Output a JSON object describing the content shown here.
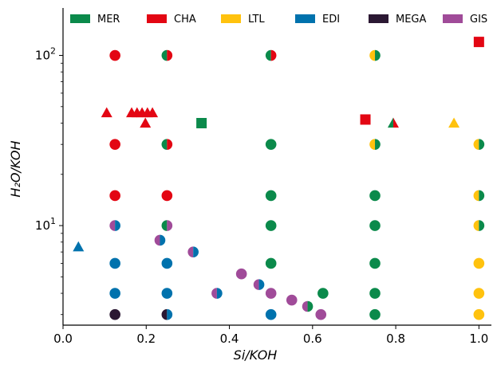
{
  "chart_data": {
    "type": "scatter",
    "title": "",
    "xlabel": "Si/KOH",
    "ylabel": "H₂O/KOH",
    "xlim": [
      0,
      1.03
    ],
    "ylim": [
      2.6,
      190
    ],
    "yscale": "log",
    "x_ticks": [
      0.0,
      0.2,
      0.4,
      0.6,
      0.8,
      1.0
    ],
    "x_tick_labels": [
      "0.0",
      "0.2",
      "0.4",
      "0.6",
      "0.8",
      "1.0"
    ],
    "y_ticks": [
      10,
      100
    ],
    "y_tick_base": "10",
    "y_tick_exponents": [
      "1",
      "2"
    ],
    "grid": false,
    "legend_position": "top",
    "colors": {
      "MER": "#0b8a4b",
      "CHA": "#e30613",
      "LTL": "#ffc20e",
      "EDI": "#0072ad",
      "MEGA": "#2b1833",
      "GIS": "#a04b99"
    },
    "legend": [
      {
        "name": "MER"
      },
      {
        "name": "CHA"
      },
      {
        "name": "LTL"
      },
      {
        "name": "EDI"
      },
      {
        "name": "MEGA"
      },
      {
        "name": "GIS"
      }
    ],
    "points": [
      {
        "x": 0.125,
        "y": 100,
        "marker": "circle",
        "phases": [
          "CHA"
        ]
      },
      {
        "x": 0.25,
        "y": 100,
        "marker": "circle",
        "phases": [
          "MER",
          "CHA"
        ]
      },
      {
        "x": 0.5,
        "y": 100,
        "marker": "circle",
        "phases": [
          "MER",
          "CHA"
        ]
      },
      {
        "x": 0.75,
        "y": 100,
        "marker": "circle",
        "phases": [
          "LTL",
          "MER"
        ]
      },
      {
        "x": 1.0,
        "y": 120,
        "marker": "square",
        "phases": [
          "CHA"
        ]
      },
      {
        "x": 0.105,
        "y": 46,
        "marker": "triangle",
        "phases": [
          "CHA"
        ]
      },
      {
        "x": 0.165,
        "y": 46,
        "marker": "triangle",
        "phases": [
          "CHA"
        ]
      },
      {
        "x": 0.178,
        "y": 46,
        "marker": "triangle",
        "phases": [
          "CHA"
        ]
      },
      {
        "x": 0.19,
        "y": 46,
        "marker": "triangle",
        "phases": [
          "CHA"
        ]
      },
      {
        "x": 0.203,
        "y": 46,
        "marker": "triangle",
        "phases": [
          "CHA"
        ]
      },
      {
        "x": 0.215,
        "y": 46,
        "marker": "triangle",
        "phases": [
          "CHA"
        ]
      },
      {
        "x": 0.198,
        "y": 40,
        "marker": "triangle",
        "phases": [
          "CHA"
        ]
      },
      {
        "x": 0.333,
        "y": 40,
        "marker": "square",
        "phases": [
          "MER"
        ]
      },
      {
        "x": 0.727,
        "y": 42,
        "marker": "square",
        "phases": [
          "CHA"
        ]
      },
      {
        "x": 0.794,
        "y": 40,
        "marker": "triangle",
        "phases": [
          "MER",
          "CHA"
        ]
      },
      {
        "x": 0.94,
        "y": 40,
        "marker": "triangle",
        "phases": [
          "LTL"
        ]
      },
      {
        "x": 0.125,
        "y": 30,
        "marker": "circle",
        "phases": [
          "CHA"
        ]
      },
      {
        "x": 0.25,
        "y": 30,
        "marker": "circle",
        "phases": [
          "MER",
          "CHA"
        ]
      },
      {
        "x": 0.5,
        "y": 30,
        "marker": "circle",
        "phases": [
          "MER"
        ]
      },
      {
        "x": 0.75,
        "y": 30,
        "marker": "circle",
        "phases": [
          "LTL",
          "MER"
        ]
      },
      {
        "x": 1.0,
        "y": 30,
        "marker": "circle",
        "phases": [
          "LTL",
          "MER"
        ]
      },
      {
        "x": 0.125,
        "y": 15,
        "marker": "circle",
        "phases": [
          "CHA"
        ]
      },
      {
        "x": 0.25,
        "y": 15,
        "marker": "circle",
        "phases": [
          "CHA"
        ]
      },
      {
        "x": 0.5,
        "y": 15,
        "marker": "circle",
        "phases": [
          "MER"
        ]
      },
      {
        "x": 0.75,
        "y": 15,
        "marker": "circle",
        "phases": [
          "MER"
        ]
      },
      {
        "x": 1.0,
        "y": 15,
        "marker": "circle",
        "phases": [
          "LTL",
          "MER"
        ]
      },
      {
        "x": 0.125,
        "y": 10,
        "marker": "circle",
        "phases": [
          "GIS",
          "EDI"
        ]
      },
      {
        "x": 0.25,
        "y": 10,
        "marker": "circle",
        "phases": [
          "MER",
          "GIS"
        ]
      },
      {
        "x": 0.5,
        "y": 10,
        "marker": "circle",
        "phases": [
          "MER"
        ]
      },
      {
        "x": 0.75,
        "y": 10,
        "marker": "circle",
        "phases": [
          "MER"
        ]
      },
      {
        "x": 1.0,
        "y": 10,
        "marker": "circle",
        "phases": [
          "LTL",
          "MER"
        ]
      },
      {
        "x": 0.037,
        "y": 7.5,
        "marker": "triangle",
        "phases": [
          "EDI"
        ]
      },
      {
        "x": 0.233,
        "y": 8.2,
        "marker": "circle",
        "phases": [
          "GIS",
          "EDI"
        ]
      },
      {
        "x": 0.313,
        "y": 7,
        "marker": "circle",
        "phases": [
          "GIS",
          "EDI"
        ]
      },
      {
        "x": 0.125,
        "y": 6,
        "marker": "circle",
        "phases": [
          "EDI"
        ]
      },
      {
        "x": 0.25,
        "y": 6,
        "marker": "circle",
        "phases": [
          "EDI"
        ]
      },
      {
        "x": 0.5,
        "y": 6,
        "marker": "circle",
        "phases": [
          "MER"
        ]
      },
      {
        "x": 0.75,
        "y": 6,
        "marker": "circle",
        "phases": [
          "MER"
        ]
      },
      {
        "x": 1.0,
        "y": 6,
        "marker": "circle",
        "phases": [
          "LTL"
        ]
      },
      {
        "x": 0.429,
        "y": 5.2,
        "marker": "circle",
        "phases": [
          "GIS"
        ]
      },
      {
        "x": 0.471,
        "y": 4.5,
        "marker": "circle",
        "phases": [
          "GIS",
          "EDI"
        ]
      },
      {
        "x": 0.125,
        "y": 4,
        "marker": "circle",
        "phases": [
          "EDI"
        ]
      },
      {
        "x": 0.25,
        "y": 4,
        "marker": "circle",
        "phases": [
          "EDI"
        ]
      },
      {
        "x": 0.37,
        "y": 4,
        "marker": "circle",
        "phases": [
          "GIS",
          "EDI"
        ]
      },
      {
        "x": 0.5,
        "y": 4,
        "marker": "circle",
        "phases": [
          "GIS"
        ]
      },
      {
        "x": 0.625,
        "y": 4,
        "marker": "circle",
        "phases": [
          "MER"
        ]
      },
      {
        "x": 0.75,
        "y": 4,
        "marker": "circle",
        "phases": [
          "MER"
        ]
      },
      {
        "x": 1.0,
        "y": 4,
        "marker": "circle",
        "phases": [
          "LTL"
        ]
      },
      {
        "x": 0.55,
        "y": 3.65,
        "marker": "circle",
        "phases": [
          "GIS"
        ]
      },
      {
        "x": 0.588,
        "y": 3.35,
        "marker": "circle",
        "phases": [
          "GIS",
          "MER"
        ]
      },
      {
        "x": 0.125,
        "y": 3,
        "marker": "circle",
        "phases": [
          "MEGA"
        ]
      },
      {
        "x": 0.25,
        "y": 3,
        "marker": "circle",
        "phases": [
          "MEGA",
          "EDI"
        ]
      },
      {
        "x": 0.5,
        "y": 3,
        "marker": "circle",
        "phases": [
          "EDI"
        ]
      },
      {
        "x": 0.62,
        "y": 3,
        "marker": "circle",
        "phases": [
          "GIS"
        ]
      },
      {
        "x": 0.75,
        "y": 3,
        "marker": "circle",
        "phases": [
          "MER"
        ]
      },
      {
        "x": 1.0,
        "y": 3,
        "marker": "circle",
        "phases": [
          "LTL"
        ]
      }
    ]
  }
}
